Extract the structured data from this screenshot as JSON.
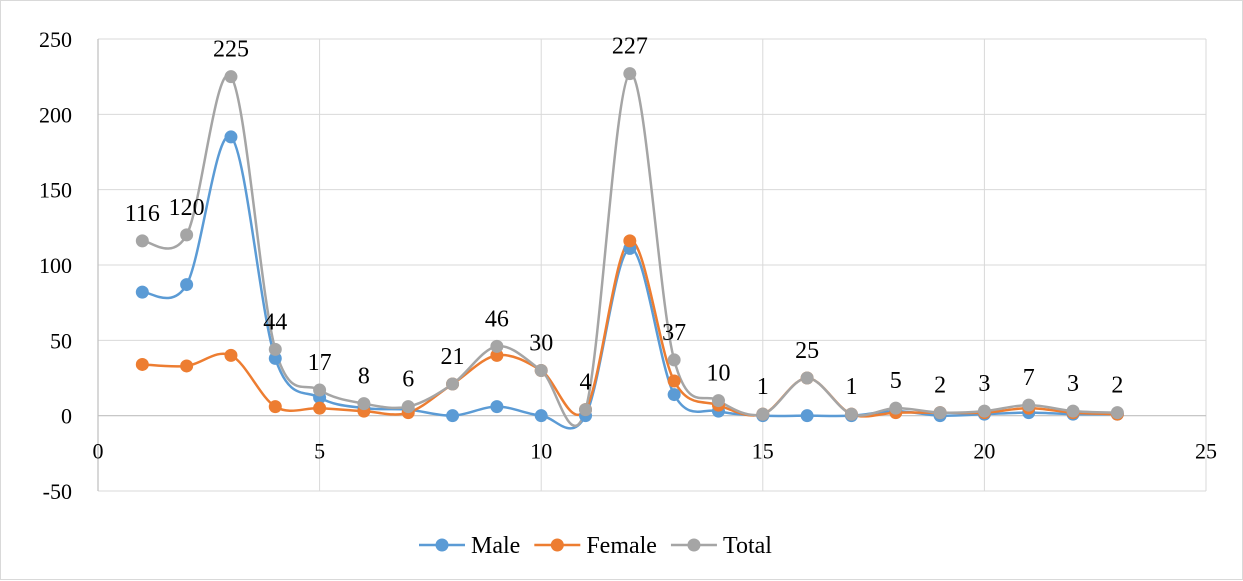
{
  "chart_data": {
    "type": "scatter",
    "title": "",
    "xlabel": "",
    "ylabel": "",
    "xlim": [
      0,
      25
    ],
    "ylim": [
      -50,
      250
    ],
    "x_ticks": [
      0,
      5,
      10,
      15,
      20,
      25
    ],
    "y_ticks": [
      -50,
      0,
      50,
      100,
      150,
      200,
      250
    ],
    "x_tick_labels": [
      "0",
      "5",
      "10",
      "15",
      "20",
      "25"
    ],
    "y_tick_labels": [
      "-50",
      "0",
      "50",
      "100",
      "150",
      "200",
      "250"
    ],
    "grid": true,
    "smooth_lines": true,
    "legend_position": "bottom",
    "x": [
      1,
      2,
      3,
      4,
      5,
      6,
      7,
      8,
      9,
      10,
      11,
      12,
      13,
      14,
      15,
      16,
      17,
      18,
      19,
      20,
      21,
      22,
      23
    ],
    "series": [
      {
        "name": "Male",
        "color": "#5b9bd5",
        "values": [
          82,
          87,
          185,
          38,
          12,
          5,
          4,
          0,
          6,
          0,
          0,
          111,
          14,
          3,
          0,
          0,
          0,
          3,
          0,
          1,
          2,
          1,
          1
        ]
      },
      {
        "name": "Female",
        "color": "#ed7d31",
        "values": [
          34,
          33,
          40,
          6,
          5,
          3,
          2,
          21,
          40,
          30,
          4,
          116,
          23,
          7,
          1,
          25,
          1,
          2,
          2,
          2,
          5,
          2,
          1
        ]
      },
      {
        "name": "Total",
        "color": "#a5a5a5",
        "values": [
          116,
          120,
          225,
          44,
          17,
          8,
          6,
          21,
          46,
          30,
          4,
          227,
          37,
          10,
          1,
          25,
          1,
          5,
          2,
          3,
          7,
          3,
          2
        ],
        "data_labels": [
          "116",
          "120",
          "225",
          "44",
          "17",
          "8",
          "6",
          "21",
          "46",
          "30",
          "4",
          "227",
          "37",
          "10",
          "1",
          "25",
          "1",
          "5",
          "2",
          "3",
          "7",
          "3",
          "2"
        ]
      }
    ]
  }
}
